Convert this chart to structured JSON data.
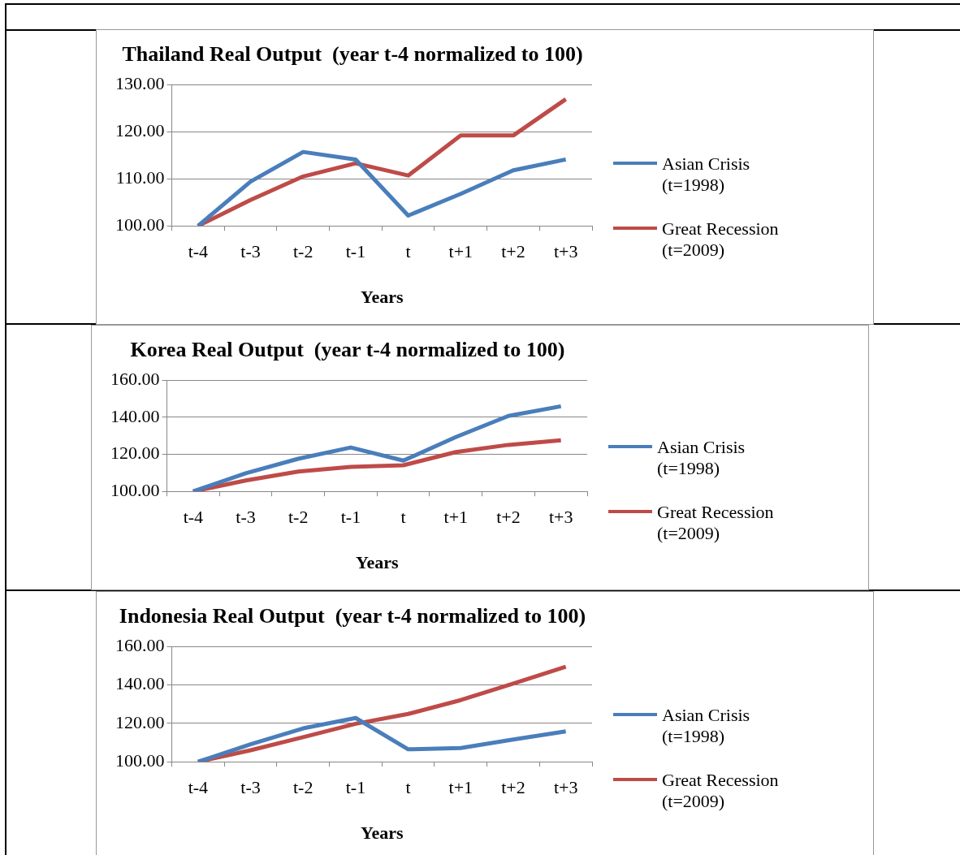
{
  "chart_data": [
    {
      "type": "line",
      "title": "Thailand Real Output  (year t-4 normalized to 100)",
      "xlabel": "Years",
      "categories": [
        "t-4",
        "t-3",
        "t-2",
        "t-1",
        "t",
        "t+1",
        "t+2",
        "t+3"
      ],
      "series": [
        {
          "name": "Asian Crisis (t=1998)",
          "color": "#4a7ebb",
          "values": [
            100,
            109.4,
            115.7,
            114.1,
            102.2,
            106.8,
            111.8,
            114.1
          ]
        },
        {
          "name": "Great Recession (t=2009)",
          "color": "#be4b48",
          "values": [
            100,
            105.5,
            110.5,
            113.3,
            110.7,
            119.2,
            119.2,
            126.9
          ]
        }
      ],
      "ylim": [
        100,
        130
      ],
      "yticks": [
        {
          "value": 100,
          "label": "100.00"
        },
        {
          "value": 110,
          "label": "110.00"
        },
        {
          "value": 120,
          "label": "120.00"
        },
        {
          "value": 130,
          "label": "130.00"
        }
      ],
      "grid": "y",
      "legend": "right",
      "marker": "none"
    },
    {
      "type": "line",
      "title": "Korea Real Output  (year t-4 normalized to 100)",
      "xlabel": "Years",
      "categories": [
        "t-4",
        "t-3",
        "t-2",
        "t-1",
        "t",
        "t+1",
        "t+2",
        "t+3"
      ],
      "series": [
        {
          "name": "Asian Crisis (t=1998)",
          "color": "#4a7ebb",
          "values": [
            100,
            109.8,
            117.6,
            123.7,
            116.6,
            129.3,
            140.7,
            145.9
          ]
        },
        {
          "name": "Great Recession (t=2009)",
          "color": "#be4b48",
          "values": [
            100,
            105.9,
            110.7,
            113.2,
            114.1,
            121.2,
            125.1,
            127.6
          ]
        }
      ],
      "ylim": [
        100,
        160
      ],
      "yticks": [
        {
          "value": 100,
          "label": "100.00"
        },
        {
          "value": 120,
          "label": "120.00"
        },
        {
          "value": 140,
          "label": "140.00"
        },
        {
          "value": 160,
          "label": "160.00"
        }
      ],
      "grid": "y",
      "legend": "right",
      "marker": "none"
    },
    {
      "type": "line",
      "title": "Indonesia Real Output  (year t-4 normalized to 100)",
      "xlabel": "Years",
      "categories": [
        "t-4",
        "t-3",
        "t-2",
        "t-1",
        "t",
        "t+1",
        "t+2",
        "t+3"
      ],
      "series": [
        {
          "name": "Asian Crisis (t=1998)",
          "color": "#4a7ebb",
          "values": [
            100,
            109.1,
            117.4,
            122.8,
            106.5,
            107.2,
            111.6,
            115.8
          ]
        },
        {
          "name": "Great Recession (t=2009)",
          "color": "#be4b48",
          "values": [
            100,
            106,
            112.8,
            119.8,
            124.9,
            132.1,
            140.7,
            149.5
          ]
        }
      ],
      "ylim": [
        100,
        160
      ],
      "yticks": [
        {
          "value": 100,
          "label": "100.00"
        },
        {
          "value": 120,
          "label": "120.00"
        },
        {
          "value": 140,
          "label": "140.00"
        },
        {
          "value": 160,
          "label": "160.00"
        }
      ],
      "grid": "y",
      "legend": "right",
      "marker": "none"
    }
  ]
}
